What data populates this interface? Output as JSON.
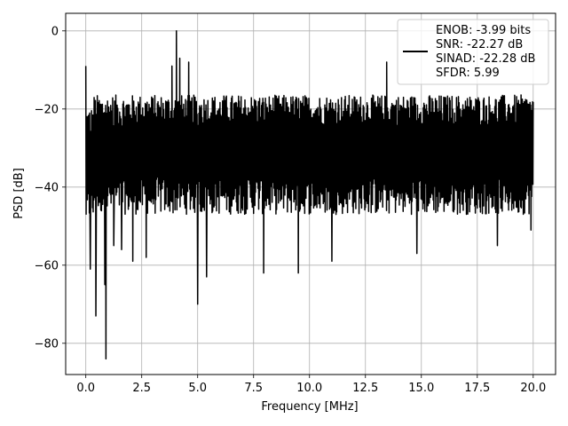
{
  "chart_data": {
    "type": "line",
    "xlabel": "Frequency [MHz]",
    "ylabel": "PSD [dB]",
    "xlim": [
      -0.9,
      21.0
    ],
    "ylim": [
      -88,
      4.5
    ],
    "x_ticks": [
      0.0,
      2.5,
      5.0,
      7.5,
      10.0,
      12.5,
      15.0,
      17.5,
      20.0
    ],
    "x_tick_labels": [
      "0.0",
      "2.5",
      "5.0",
      "7.5",
      "10.0",
      "12.5",
      "15.0",
      "17.5",
      "20.0"
    ],
    "y_ticks": [
      0,
      -20,
      -40,
      -60,
      -80
    ],
    "y_tick_labels": [
      "0",
      "−20",
      "−40",
      "−60",
      "−80"
    ],
    "grid": true,
    "legend_position": "top-right",
    "legend_lines": [
      "ENOB: -3.99 bits",
      "SNR: -22.27 dB",
      "SINAD: -22.28 dB",
      "SFDR: 5.99"
    ],
    "series": [
      {
        "color": "#000000",
        "noise_floor": {
          "x_range": [
            0,
            20
          ],
          "typical_upper_db": -20,
          "typical_lower_db": -43,
          "mean_db": -31
        },
        "peaks": [
          {
            "x": 0.0,
            "y": -9
          },
          {
            "x": 4.05,
            "y": 0
          },
          {
            "x": 4.2,
            "y": -7
          },
          {
            "x": 3.85,
            "y": -9
          },
          {
            "x": 4.6,
            "y": -8
          },
          {
            "x": 13.45,
            "y": -8
          }
        ],
        "dips": [
          {
            "x": 0.2,
            "y": -61
          },
          {
            "x": 0.45,
            "y": -73
          },
          {
            "x": 0.9,
            "y": -84
          },
          {
            "x": 0.85,
            "y": -65
          },
          {
            "x": 1.25,
            "y": -55
          },
          {
            "x": 1.6,
            "y": -56
          },
          {
            "x": 2.1,
            "y": -59
          },
          {
            "x": 2.7,
            "y": -58
          },
          {
            "x": 5.0,
            "y": -70
          },
          {
            "x": 5.4,
            "y": -63
          },
          {
            "x": 7.95,
            "y": -62
          },
          {
            "x": 9.5,
            "y": -62
          },
          {
            "x": 11.0,
            "y": -59
          },
          {
            "x": 14.8,
            "y": -57
          },
          {
            "x": 18.4,
            "y": -55
          },
          {
            "x": 19.9,
            "y": -51
          }
        ]
      }
    ]
  }
}
